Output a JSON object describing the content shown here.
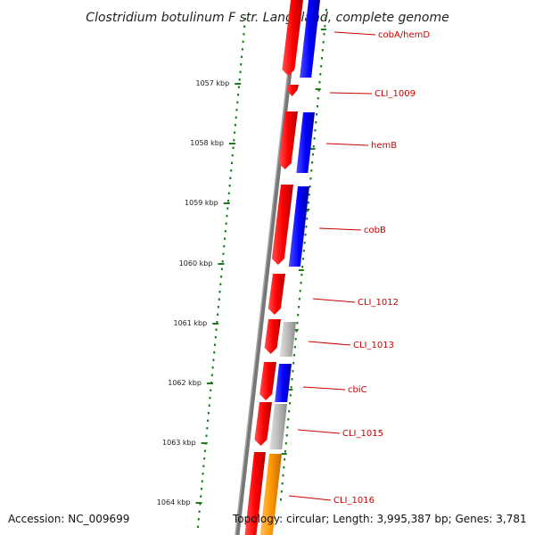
{
  "title": "Clostridium botulinum F str. Langeland, complete genome",
  "footer": {
    "accession": "Accession: NC_009699",
    "summary": "Topology: circular; Length: 3,995,387 bp; Genes: 3,781"
  },
  "ruler": {
    "labels": [
      "1057 kbp",
      "1058 kbp",
      "1059 kbp",
      "1060 kbp",
      "1061 kbp",
      "1062 kbp",
      "1063 kbp",
      "1064 kbp"
    ]
  },
  "genes": [
    {
      "label": "cobA/hemD"
    },
    {
      "label": "CLI_1009"
    },
    {
      "label": "hemB"
    },
    {
      "label": "cobB"
    },
    {
      "label": "CLI_1012"
    },
    {
      "label": "CLI_1013"
    },
    {
      "label": "cbiC"
    },
    {
      "label": "CLI_1015"
    },
    {
      "label": "CLI_1016"
    }
  ],
  "colors": {
    "cds": "#ff0000",
    "blue_track": "#0000ff",
    "grey_track": "#bbbbbb",
    "orange_track": "#ff9900",
    "ticks": "#1e7a1e",
    "backbone": "#888888",
    "label": "#cc0000"
  }
}
